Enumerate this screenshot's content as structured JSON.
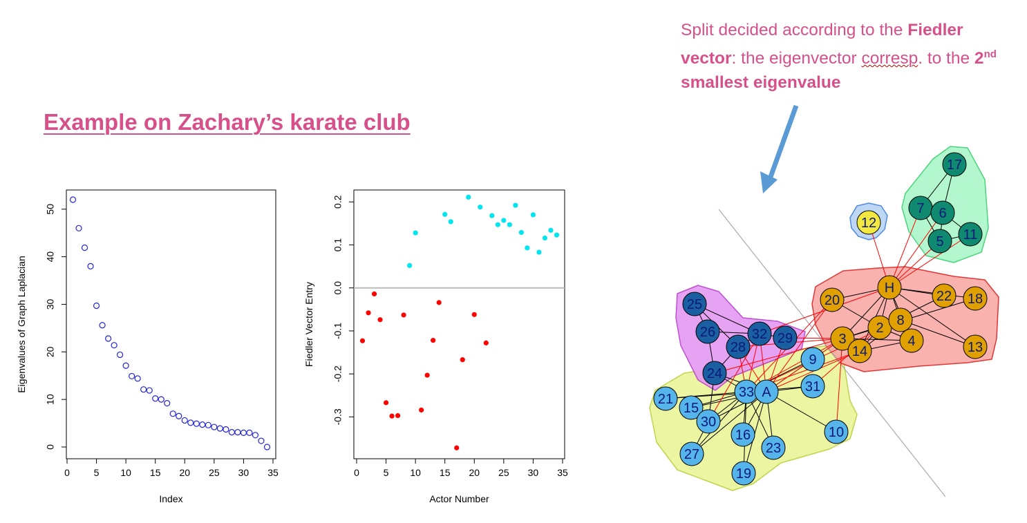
{
  "slide": {
    "title": "Example  on Zachary’s karate club",
    "note": {
      "part1": "Split decided according to the ",
      "bold1": "Fiedler vector",
      "part2": ": the eigenvector ",
      "squiggle": "corresp",
      "part3": ". to the ",
      "bold2_pre": "2",
      "bold2_sup": "nd",
      "bold2_post": " smallest eigenvalue"
    }
  },
  "chart_data": [
    {
      "type": "scatter",
      "xlabel": "Index",
      "ylabel": "Eigenvalues of Graph Laplacian",
      "xlim": [
        0,
        35
      ],
      "ylim": [
        0,
        52
      ],
      "xticks": [
        "0",
        "5",
        "10",
        "15",
        "20",
        "25",
        "30",
        "35"
      ],
      "yticks": [
        "0",
        "10",
        "20",
        "30",
        "40",
        "50"
      ],
      "marker": "open-circle",
      "color": "#2222dd",
      "x": [
        1,
        2,
        3,
        4,
        5,
        6,
        7,
        8,
        9,
        10,
        11,
        12,
        13,
        14,
        15,
        16,
        17,
        18,
        19,
        20,
        21,
        22,
        23,
        24,
        25,
        26,
        27,
        28,
        29,
        30,
        31,
        32,
        33,
        34
      ],
      "values": [
        52.0,
        46.0,
        41.9,
        38.0,
        29.7,
        25.6,
        22.8,
        21.4,
        19.4,
        17.1,
        14.9,
        14.4,
        12.1,
        11.9,
        10.2,
        10.0,
        9.2,
        7.0,
        6.5,
        5.6,
        5.1,
        4.9,
        4.7,
        4.6,
        4.2,
        3.9,
        3.7,
        3.1,
        3.1,
        3.0,
        3.0,
        2.5,
        1.3,
        0.0
      ]
    },
    {
      "type": "scatter",
      "xlabel": "Actor Number",
      "ylabel": "Fiedler Vector Entry",
      "xlim": [
        0,
        35
      ],
      "ylim": [
        -0.37,
        0.21
      ],
      "xticks": [
        "0",
        "5",
        "10",
        "15",
        "20",
        "25",
        "30",
        "35"
      ],
      "yticks": [
        "-0.3",
        "-0.2",
        "-0.1",
        "0.0",
        "0.1",
        "0.2"
      ],
      "zero_line": true,
      "series": [
        {
          "name": "negative",
          "color": "#ff0000",
          "x": [
            1,
            2,
            3,
            4,
            5,
            6,
            7,
            8,
            11,
            12,
            13,
            14,
            17,
            18,
            20,
            22
          ],
          "values": [
            -0.123,
            -0.058,
            -0.014,
            -0.074,
            -0.267,
            -0.298,
            -0.297,
            -0.063,
            -0.284,
            -0.203,
            -0.122,
            -0.034,
            -0.372,
            -0.167,
            -0.062,
            -0.128
          ]
        },
        {
          "name": "positive",
          "color": "#00e5ee",
          "x": [
            9,
            10,
            15,
            16,
            19,
            21,
            23,
            24,
            25,
            26,
            27,
            28,
            29,
            30,
            31,
            32,
            33,
            34
          ],
          "values": [
            0.052,
            0.128,
            0.171,
            0.154,
            0.211,
            0.188,
            0.168,
            0.147,
            0.157,
            0.147,
            0.192,
            0.129,
            0.093,
            0.17,
            0.083,
            0.116,
            0.134,
            0.123
          ]
        }
      ]
    },
    {
      "type": "network",
      "clusters": [
        {
          "name": "light-blue",
          "nodes": [
            "A",
            "33",
            "9",
            "31",
            "10",
            "21",
            "15",
            "30",
            "27",
            "16",
            "23",
            "19",
            "24"
          ],
          "fill": "#eaf597",
          "stroke": "#bad03b"
        },
        {
          "name": "purple",
          "nodes": [
            "25",
            "26",
            "28",
            "32",
            "29",
            "24"
          ],
          "fill": "#e59af2",
          "stroke": "#b63dcc"
        },
        {
          "name": "red",
          "nodes": [
            "H",
            "20",
            "22",
            "18",
            "2",
            "8",
            "3",
            "4",
            "14",
            "13"
          ],
          "fill": "#f9aaa5",
          "stroke": "#e02020"
        },
        {
          "name": "green",
          "nodes": [
            "17",
            "7",
            "6",
            "5",
            "11"
          ],
          "fill": "#aaf7c8",
          "stroke": "#38d070"
        },
        {
          "name": "yellow",
          "nodes": [
            "12"
          ],
          "fill": "#b7d3f5",
          "stroke": "#3b7ce0"
        }
      ],
      "nodes": [
        {
          "id": "17",
          "fill": "#0f8a70"
        },
        {
          "id": "7",
          "fill": "#0f8a70"
        },
        {
          "id": "6",
          "fill": "#0f8a70"
        },
        {
          "id": "5",
          "fill": "#0f8a70"
        },
        {
          "id": "11",
          "fill": "#0f8a70"
        },
        {
          "id": "12",
          "fill": "#f2e840"
        },
        {
          "id": "H",
          "fill": "#e0a000"
        },
        {
          "id": "20",
          "fill": "#e0a000"
        },
        {
          "id": "22",
          "fill": "#e0a000"
        },
        {
          "id": "18",
          "fill": "#e0a000"
        },
        {
          "id": "2",
          "fill": "#e0a000"
        },
        {
          "id": "8",
          "fill": "#e0a000"
        },
        {
          "id": "3",
          "fill": "#e0a000"
        },
        {
          "id": "4",
          "fill": "#e0a000"
        },
        {
          "id": "14",
          "fill": "#e0a000"
        },
        {
          "id": "13",
          "fill": "#e0a000"
        },
        {
          "id": "25",
          "fill": "#1a5fa0"
        },
        {
          "id": "26",
          "fill": "#1a5fa0"
        },
        {
          "id": "32",
          "fill": "#1a5fa0"
        },
        {
          "id": "29",
          "fill": "#1a5fa0"
        },
        {
          "id": "28",
          "fill": "#1a5fa0"
        },
        {
          "id": "24",
          "fill": "#1a5fa0"
        },
        {
          "id": "9",
          "fill": "#55b5ea"
        },
        {
          "id": "31",
          "fill": "#55b5ea"
        },
        {
          "id": "33",
          "fill": "#55b5ea"
        },
        {
          "id": "A",
          "fill": "#55b5ea"
        },
        {
          "id": "21",
          "fill": "#55b5ea"
        },
        {
          "id": "15",
          "fill": "#55b5ea"
        },
        {
          "id": "30",
          "fill": "#55b5ea"
        },
        {
          "id": "16",
          "fill": "#55b5ea"
        },
        {
          "id": "23",
          "fill": "#55b5ea"
        },
        {
          "id": "10",
          "fill": "#55b5ea"
        },
        {
          "id": "27",
          "fill": "#55b5ea"
        },
        {
          "id": "19",
          "fill": "#55b5ea"
        }
      ],
      "edges_within": [
        [
          "17",
          "7"
        ],
        [
          "17",
          "6"
        ],
        [
          "7",
          "6"
        ],
        [
          "7",
          "5"
        ],
        [
          "6",
          "5"
        ],
        [
          "6",
          "11"
        ],
        [
          "5",
          "11"
        ],
        [
          "H",
          "20"
        ],
        [
          "H",
          "22"
        ],
        [
          "H",
          "18"
        ],
        [
          "H",
          "2"
        ],
        [
          "H",
          "8"
        ],
        [
          "H",
          "3"
        ],
        [
          "H",
          "4"
        ],
        [
          "H",
          "14"
        ],
        [
          "H",
          "13"
        ],
        [
          "2",
          "8"
        ],
        [
          "2",
          "3"
        ],
        [
          "2",
          "4"
        ],
        [
          "2",
          "14"
        ],
        [
          "2",
          "18"
        ],
        [
          "2",
          "20"
        ],
        [
          "2",
          "22"
        ],
        [
          "8",
          "3"
        ],
        [
          "8",
          "4"
        ],
        [
          "8",
          "14"
        ],
        [
          "3",
          "4"
        ],
        [
          "3",
          "14"
        ],
        [
          "4",
          "14"
        ],
        [
          "8",
          "13"
        ],
        [
          "25",
          "26"
        ],
        [
          "25",
          "32"
        ],
        [
          "25",
          "28"
        ],
        [
          "26",
          "32"
        ],
        [
          "26",
          "24"
        ],
        [
          "32",
          "29"
        ],
        [
          "28",
          "24"
        ],
        [
          "28",
          "32"
        ],
        [
          "24",
          "33"
        ],
        [
          "24",
          "A"
        ],
        [
          "24",
          "30"
        ],
        [
          "9",
          "33"
        ],
        [
          "9",
          "A"
        ],
        [
          "31",
          "33"
        ],
        [
          "31",
          "A"
        ],
        [
          "10",
          "A"
        ],
        [
          "A",
          "33"
        ],
        [
          "A",
          "15"
        ],
        [
          "A",
          "16"
        ],
        [
          "A",
          "19"
        ],
        [
          "A",
          "21"
        ],
        [
          "A",
          "23"
        ],
        [
          "A",
          "27"
        ],
        [
          "A",
          "30"
        ],
        [
          "33",
          "15"
        ],
        [
          "33",
          "16"
        ],
        [
          "33",
          "19"
        ],
        [
          "33",
          "21"
        ],
        [
          "33",
          "23"
        ],
        [
          "33",
          "27"
        ],
        [
          "33",
          "30"
        ],
        [
          "27",
          "30"
        ]
      ],
      "edges_between": [
        [
          "H",
          "12"
        ],
        [
          "H",
          "7"
        ],
        [
          "H",
          "6"
        ],
        [
          "H",
          "5"
        ],
        [
          "H",
          "11"
        ],
        [
          "H",
          "32"
        ],
        [
          "3",
          "28"
        ],
        [
          "3",
          "29"
        ],
        [
          "3",
          "33"
        ],
        [
          "3",
          "9"
        ],
        [
          "3",
          "10"
        ],
        [
          "3",
          "A"
        ],
        [
          "14",
          "A"
        ],
        [
          "14",
          "33"
        ],
        [
          "20",
          "A"
        ],
        [
          "20",
          "33"
        ],
        [
          "2",
          "31"
        ],
        [
          "8",
          "33"
        ],
        [
          "A",
          "28"
        ],
        [
          "A",
          "29"
        ],
        [
          "A",
          "32"
        ],
        [
          "33",
          "32"
        ],
        [
          "33",
          "28"
        ],
        [
          "24",
          "3"
        ],
        [
          "30",
          "32"
        ]
      ]
    }
  ]
}
